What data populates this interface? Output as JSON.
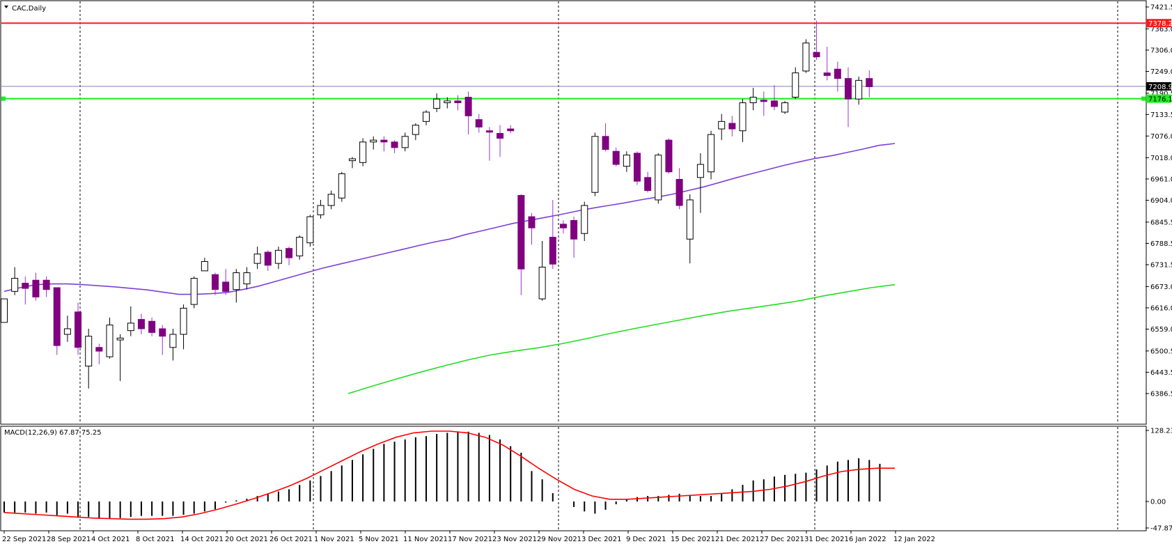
{
  "window": {
    "symbol_label": "CAC,Daily",
    "dropdown_icon": "triangle-down-icon"
  },
  "colors": {
    "background": "#ffffff",
    "bull_fill": "#ffffff",
    "bear_fill": "#800080",
    "candle_outline": "#000000",
    "wick_up": "#000000",
    "wick_down": "#9932cc",
    "ma_fast": "#7b3fd8",
    "ma_slow": "#22dd22",
    "resistance": "#ff1a1a",
    "support": "#1aee1a",
    "bid_line": "#7b86b8",
    "macd_hist": "#000000",
    "macd_signal": "#ff0000",
    "price_tag_bid_bg": "#000000",
    "price_tag_resistance_bg": "#ff1a1a",
    "price_tag_support_bg": "#1aee1a"
  },
  "price_axis": {
    "ticks": [
      "7421.5",
      "7363.0",
      "7306.0",
      "7249.0",
      "7190.5",
      "7133.5",
      "7076.0",
      "7018.0",
      "6961.0",
      "6904.0",
      "6845.5",
      "6788.5",
      "6731.5",
      "6673.0",
      "6616.0",
      "6559.0",
      "6500.5",
      "6443.5",
      "6386.5"
    ],
    "tags": {
      "resistance": "7378.2",
      "bid": "7208.9",
      "support": "7176.1"
    }
  },
  "macd_panel": {
    "label": "MACD(12,26,9) 67.87 75.25",
    "ticks": [
      "128.23",
      "0.00",
      "-47.87"
    ]
  },
  "time_axis": {
    "labels": [
      "22 Sep 2021",
      "28 Sep 2021",
      "4 Oct 2021",
      "8 Oct 2021",
      "14 Oct 2021",
      "20 Oct 2021",
      "26 Oct 2021",
      "1 Nov 2021",
      "5 Nov 2021",
      "11 Nov 2021",
      "17 Nov 2021",
      "23 Nov 2021",
      "29 Nov 2021",
      "3 Dec 2021",
      "9 Dec 2021",
      "15 Dec 2021",
      "21 Dec 2021",
      "27 Dec 2021",
      "31 Dec 2021",
      "6 Jan 2022",
      "12 Jan 2022"
    ]
  },
  "chart_data": {
    "type": "candlestick",
    "symbol": "CAC",
    "timeframe": "Daily",
    "ylim": [
      6386.5,
      7421.5
    ],
    "levels": {
      "resistance": 7378.2,
      "support": 7176.1,
      "bid": 7208.9
    },
    "candles": [
      {
        "o": 6577,
        "h": 6640,
        "l": 6577,
        "c": 6640
      },
      {
        "o": 6660,
        "h": 6725,
        "l": 6650,
        "c": 6695
      },
      {
        "o": 6682,
        "h": 6700,
        "l": 6625,
        "c": 6668
      },
      {
        "o": 6690,
        "h": 6710,
        "l": 6635,
        "c": 6645
      },
      {
        "o": 6690,
        "h": 6700,
        "l": 6645,
        "c": 6665
      },
      {
        "o": 6670,
        "h": 6670,
        "l": 6490,
        "c": 6515
      },
      {
        "o": 6545,
        "h": 6595,
        "l": 6525,
        "c": 6560
      },
      {
        "o": 6605,
        "h": 6630,
        "l": 6490,
        "c": 6510
      },
      {
        "o": 6460,
        "h": 6560,
        "l": 6400,
        "c": 6540
      },
      {
        "o": 6510,
        "h": 6520,
        "l": 6465,
        "c": 6500
      },
      {
        "o": 6485,
        "h": 6590,
        "l": 6480,
        "c": 6570
      },
      {
        "o": 6530,
        "h": 6545,
        "l": 6420,
        "c": 6535
      },
      {
        "o": 6555,
        "h": 6620,
        "l": 6540,
        "c": 6575
      },
      {
        "o": 6585,
        "h": 6600,
        "l": 6545,
        "c": 6560
      },
      {
        "o": 6580,
        "h": 6590,
        "l": 6540,
        "c": 6550
      },
      {
        "o": 6560,
        "h": 6570,
        "l": 6490,
        "c": 6540
      },
      {
        "o": 6510,
        "h": 6560,
        "l": 6475,
        "c": 6545
      },
      {
        "o": 6545,
        "h": 6625,
        "l": 6505,
        "c": 6615
      },
      {
        "o": 6625,
        "h": 6700,
        "l": 6615,
        "c": 6695
      },
      {
        "o": 6715,
        "h": 6750,
        "l": 6715,
        "c": 6740
      },
      {
        "o": 6705,
        "h": 6710,
        "l": 6650,
        "c": 6665
      },
      {
        "o": 6685,
        "h": 6720,
        "l": 6650,
        "c": 6660
      },
      {
        "o": 6665,
        "h": 6720,
        "l": 6630,
        "c": 6710
      },
      {
        "o": 6680,
        "h": 6725,
        "l": 6665,
        "c": 6710
      },
      {
        "o": 6735,
        "h": 6780,
        "l": 6720,
        "c": 6760
      },
      {
        "o": 6765,
        "h": 6770,
        "l": 6715,
        "c": 6730
      },
      {
        "o": 6735,
        "h": 6780,
        "l": 6720,
        "c": 6770
      },
      {
        "o": 6775,
        "h": 6780,
        "l": 6730,
        "c": 6750
      },
      {
        "o": 6755,
        "h": 6810,
        "l": 6745,
        "c": 6805
      },
      {
        "o": 6790,
        "h": 6865,
        "l": 6780,
        "c": 6860
      },
      {
        "o": 6865,
        "h": 6905,
        "l": 6855,
        "c": 6890
      },
      {
        "o": 6890,
        "h": 6930,
        "l": 6880,
        "c": 6920
      },
      {
        "o": 6910,
        "h": 6980,
        "l": 6900,
        "c": 6975
      },
      {
        "o": 7010,
        "h": 7020,
        "l": 6990,
        "c": 7015
      },
      {
        "o": 7005,
        "h": 7070,
        "l": 6995,
        "c": 7060
      },
      {
        "o": 7060,
        "h": 7075,
        "l": 7040,
        "c": 7065
      },
      {
        "o": 7065,
        "h": 7075,
        "l": 7035,
        "c": 7060
      },
      {
        "o": 7060,
        "h": 7065,
        "l": 7030,
        "c": 7045
      },
      {
        "o": 7045,
        "h": 7085,
        "l": 7035,
        "c": 7075
      },
      {
        "o": 7080,
        "h": 7110,
        "l": 7065,
        "c": 7105
      },
      {
        "o": 7115,
        "h": 7145,
        "l": 7105,
        "c": 7140
      },
      {
        "o": 7150,
        "h": 7190,
        "l": 7140,
        "c": 7175
      },
      {
        "o": 7165,
        "h": 7180,
        "l": 7150,
        "c": 7170
      },
      {
        "o": 7170,
        "h": 7185,
        "l": 7145,
        "c": 7165
      },
      {
        "o": 7180,
        "h": 7195,
        "l": 7080,
        "c": 7130
      },
      {
        "o": 7120,
        "h": 7135,
        "l": 7085,
        "c": 7100
      },
      {
        "o": 7090,
        "h": 7100,
        "l": 7010,
        "c": 7088
      },
      {
        "o": 7083,
        "h": 7105,
        "l": 7020,
        "c": 7070
      },
      {
        "o": 7095,
        "h": 7105,
        "l": 7083,
        "c": 7090
      },
      {
        "o": 6917,
        "h": 6920,
        "l": 6650,
        "c": 6720
      },
      {
        "o": 6860,
        "h": 6870,
        "l": 6785,
        "c": 6830
      },
      {
        "o": 6640,
        "h": 6795,
        "l": 6635,
        "c": 6725
      },
      {
        "o": 6805,
        "h": 6905,
        "l": 6720,
        "c": 6733
      },
      {
        "o": 6840,
        "h": 6850,
        "l": 6815,
        "c": 6830
      },
      {
        "o": 6850,
        "h": 6860,
        "l": 6750,
        "c": 6800
      },
      {
        "o": 6815,
        "h": 6900,
        "l": 6795,
        "c": 6890
      },
      {
        "o": 6925,
        "h": 7085,
        "l": 6915,
        "c": 7075
      },
      {
        "o": 7075,
        "h": 7110,
        "l": 7035,
        "c": 7040
      },
      {
        "o": 7035,
        "h": 7045,
        "l": 6995,
        "c": 7000
      },
      {
        "o": 6995,
        "h": 7035,
        "l": 6980,
        "c": 7025
      },
      {
        "o": 7030,
        "h": 7035,
        "l": 6945,
        "c": 6955
      },
      {
        "o": 6965,
        "h": 6980,
        "l": 6925,
        "c": 6930
      },
      {
        "o": 6905,
        "h": 7030,
        "l": 6895,
        "c": 7025
      },
      {
        "o": 7065,
        "h": 7070,
        "l": 6975,
        "c": 6980
      },
      {
        "o": 6960,
        "h": 6990,
        "l": 6880,
        "c": 6890
      },
      {
        "o": 6800,
        "h": 6920,
        "l": 6735,
        "c": 6905
      },
      {
        "o": 6965,
        "h": 7030,
        "l": 6870,
        "c": 7000
      },
      {
        "o": 6980,
        "h": 7090,
        "l": 6960,
        "c": 7080
      },
      {
        "o": 7095,
        "h": 7135,
        "l": 7065,
        "c": 7115
      },
      {
        "o": 7110,
        "h": 7130,
        "l": 7075,
        "c": 7095
      },
      {
        "o": 7090,
        "h": 7175,
        "l": 7060,
        "c": 7165
      },
      {
        "o": 7165,
        "h": 7205,
        "l": 7145,
        "c": 7180
      },
      {
        "o": 7172,
        "h": 7195,
        "l": 7130,
        "c": 7170
      },
      {
        "o": 7170,
        "h": 7212,
        "l": 7145,
        "c": 7155
      },
      {
        "o": 7140,
        "h": 7170,
        "l": 7135,
        "c": 7165
      },
      {
        "o": 7180,
        "h": 7260,
        "l": 7175,
        "c": 7245
      },
      {
        "o": 7250,
        "h": 7335,
        "l": 7245,
        "c": 7325
      },
      {
        "o": 7300,
        "h": 7385,
        "l": 7280,
        "c": 7288
      },
      {
        "o": 7245,
        "h": 7315,
        "l": 7225,
        "c": 7238
      },
      {
        "o": 7255,
        "h": 7275,
        "l": 7195,
        "c": 7230
      },
      {
        "o": 7230,
        "h": 7260,
        "l": 7100,
        "c": 7175
      },
      {
        "o": 7175,
        "h": 7235,
        "l": 7160,
        "c": 7225
      },
      {
        "o": 7230,
        "h": 7252,
        "l": 7180,
        "c": 7208
      }
    ],
    "ma_fast": [
      6660,
      6670,
      6678,
      6680,
      6680,
      6678,
      6675,
      6672,
      6668,
      6664,
      6658,
      6652,
      6652,
      6654,
      6657,
      6665,
      6674,
      6686,
      6698,
      6710,
      6722,
      6732,
      6742,
      6752,
      6762,
      6772,
      6782,
      6792,
      6800,
      6812,
      6822,
      6832,
      6842,
      6850,
      6858,
      6866,
      6875,
      6883,
      6890,
      6897,
      6905,
      6912,
      6920,
      6930,
      6940,
      6952,
      6964,
      6975,
      6986,
      6997,
      7007,
      7016,
      7023,
      7032,
      7041,
      7051,
      7056
    ],
    "ma_slow": [
      6386.5,
      6406,
      6425,
      6443,
      6460,
      6476,
      6490,
      6500,
      6509,
      6520,
      6533,
      6547,
      6560,
      6572,
      6584,
      6596,
      6607,
      6616,
      6625,
      6635,
      6648,
      6659,
      6670,
      6678
    ],
    "macd": {
      "label": "MACD(12,26,9)",
      "value": 67.87,
      "signal_value": 75.25,
      "ylim": [
        -47.87,
        128.23
      ],
      "hist": [
        -20,
        -20,
        -20,
        -22,
        -20,
        -25,
        -22,
        -28,
        -28,
        -30,
        -30,
        -30,
        -28,
        -26,
        -26,
        -26,
        -26,
        -24,
        -22,
        -18,
        -14,
        -2,
        2,
        5,
        10,
        14,
        18,
        22,
        30,
        38,
        46,
        55,
        65,
        75,
        85,
        95,
        104,
        108,
        112,
        116,
        118,
        122,
        124,
        125,
        126,
        124,
        120,
        112,
        100,
        88,
        55,
        40,
        15,
        0,
        -10,
        -18,
        -22,
        -15,
        -5,
        5,
        8,
        10,
        10,
        12,
        14,
        12,
        10,
        10,
        14,
        22,
        30,
        38,
        40,
        45,
        48,
        50,
        52,
        58,
        65,
        72,
        75,
        78,
        75,
        68
      ],
      "signal": [
        -20,
        -22,
        -24,
        -26,
        -28,
        -30,
        -31,
        -32,
        -32,
        -31,
        -28,
        -22,
        -14,
        -5,
        5,
        16,
        28,
        42,
        58,
        74,
        90,
        104,
        116,
        124,
        127,
        127,
        124,
        116,
        102,
        82,
        60,
        40,
        22,
        10,
        4,
        4,
        6,
        8,
        10,
        12,
        14,
        16,
        18,
        22,
        28,
        36,
        46,
        54,
        58,
        60,
        60
      ]
    }
  }
}
